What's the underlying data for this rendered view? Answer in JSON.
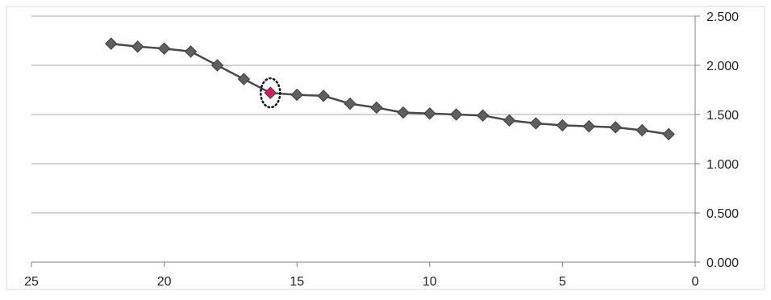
{
  "chart_data": {
    "type": "line",
    "title": "",
    "xlabel": "",
    "ylabel": "",
    "x_reversed": true,
    "xlim": [
      0,
      25
    ],
    "ylim": [
      0,
      2.5
    ],
    "x_ticks": [
      25,
      20,
      15,
      10,
      5,
      0
    ],
    "x_tick_labels": [
      "25",
      "20",
      "15",
      "10",
      "5",
      "0"
    ],
    "y_ticks": [
      0,
      0.5,
      1,
      1.5,
      2,
      2.5
    ],
    "y_tick_labels": [
      "0.000",
      "0.500",
      "1.000",
      "1.500",
      "2.000",
      "2.500"
    ],
    "y_axis_side": "right",
    "grid": "horizontal",
    "legend": "none",
    "colors": {
      "line": "#4a4a4a",
      "marker": "#5f5f5f",
      "highlight": "#e8175d",
      "grid": "#a6a6a6"
    },
    "series": [
      {
        "x": [
          22,
          21,
          20,
          19,
          18,
          17,
          16,
          15,
          14,
          13,
          12,
          11,
          10,
          9,
          8,
          7,
          6,
          5,
          4,
          3,
          2,
          1
        ],
        "values": [
          2.22,
          2.19,
          2.17,
          2.14,
          2.0,
          1.86,
          1.72,
          1.7,
          1.69,
          1.61,
          1.57,
          1.52,
          1.51,
          1.5,
          1.49,
          1.44,
          1.41,
          1.39,
          1.38,
          1.37,
          1.34,
          1.3
        ]
      }
    ],
    "highlight_point": {
      "x": 16,
      "y": 1.72
    }
  }
}
